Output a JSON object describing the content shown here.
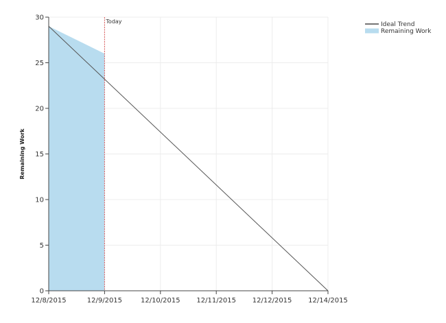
{
  "chart_data": {
    "type": "area",
    "title": "",
    "xlabel": "",
    "ylabel": "Remaining Work",
    "x_categories": [
      "12/8/2015",
      "12/9/2015",
      "12/10/2015",
      "12/11/2015",
      "12/12/2015",
      "12/14/2015"
    ],
    "ylim": [
      0,
      30
    ],
    "y_ticks": [
      0,
      5,
      10,
      15,
      20,
      25,
      30
    ],
    "grid": true,
    "legend_position": "top-right",
    "series": [
      {
        "name": "Ideal Trend",
        "kind": "line",
        "color": "#555555",
        "points": [
          {
            "x": "12/8/2015",
            "y": 29
          },
          {
            "x": "12/14/2015",
            "y": 0
          }
        ]
      },
      {
        "name": "Remaining Work",
        "kind": "area",
        "color": "#b8dcef",
        "points": [
          {
            "x": "12/8/2015",
            "y": 29
          },
          {
            "x": "12/9/2015",
            "y": 26
          }
        ]
      }
    ],
    "annotations": [
      {
        "label": "Today",
        "x": "12/9/2015",
        "color": "#e05a5a"
      }
    ]
  }
}
